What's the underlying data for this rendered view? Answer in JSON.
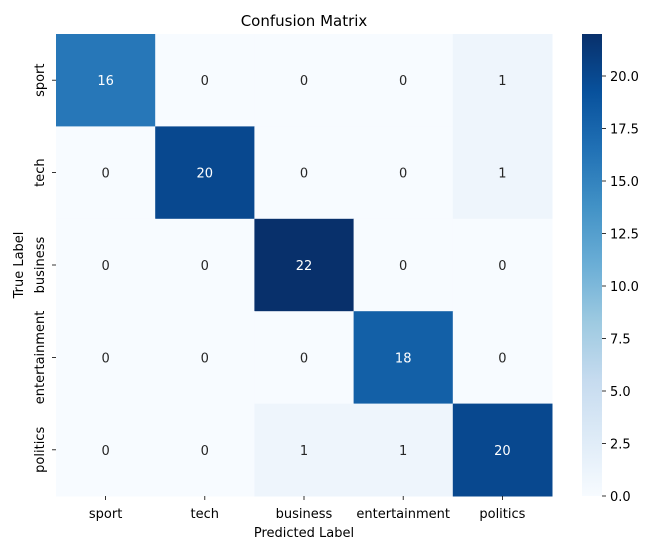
{
  "chart_data": {
    "type": "heatmap",
    "title": "Confusion Matrix",
    "xlabel": "Predicted Label",
    "ylabel": "True Label",
    "x_categories": [
      "sport",
      "tech",
      "business",
      "entertainment",
      "politics"
    ],
    "y_categories": [
      "sport",
      "tech",
      "business",
      "entertainment",
      "politics"
    ],
    "values": [
      [
        16,
        0,
        0,
        0,
        1
      ],
      [
        0,
        20,
        0,
        0,
        1
      ],
      [
        0,
        0,
        22,
        0,
        0
      ],
      [
        0,
        0,
        0,
        18,
        0
      ],
      [
        0,
        0,
        1,
        1,
        20
      ]
    ],
    "colormap": "Blues",
    "colorbar": {
      "min": 0,
      "max": 22,
      "ticks": [
        "0.0",
        "2.5",
        "5.0",
        "7.5",
        "10.0",
        "12.5",
        "15.0",
        "17.5",
        "20.0"
      ]
    }
  }
}
